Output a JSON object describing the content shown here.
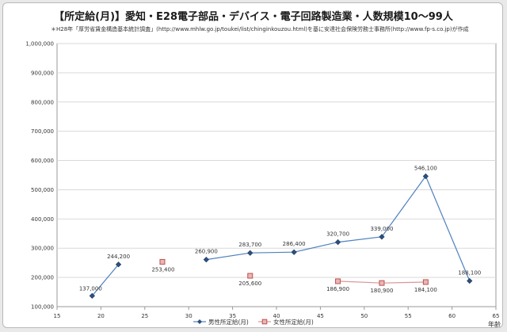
{
  "chart_data": {
    "type": "line",
    "title": "【所定給(月)】愛知・E28電子部品・デバイス・電子回路製造業・人数規模10～99人",
    "source_note": "＊H28年「厚労省賃金構造基本統計調査」(http://www.mhlw.go.jp/toukei/list/chinginkouzou.html)を基に安達社会保険労務士事務所(http://www.fp-s.co.jp)が作成",
    "xlabel": "年齢",
    "ylabel": "",
    "xlim": [
      15,
      65
    ],
    "ylim": [
      100000,
      1000000
    ],
    "x_ticks": [
      "15",
      "20",
      "25",
      "30",
      "35",
      "40",
      "45",
      "50",
      "55",
      "60",
      "65"
    ],
    "y_ticks": [
      "100,000",
      "200,000",
      "300,000",
      "400,000",
      "500,000",
      "600,000",
      "700,000",
      "800,000",
      "900,000",
      "1,000,000"
    ],
    "grid": "horizontal",
    "legend_position": "bottom",
    "series": [
      {
        "name": "男性所定給(月)",
        "color": "#2e4f7e",
        "marker": "diamond",
        "x": [
          19,
          22,
          32,
          37,
          42,
          47,
          52,
          57,
          62
        ],
        "values": [
          137000,
          244200,
          260900,
          283700,
          286400,
          320700,
          339000,
          546100,
          188100
        ],
        "labels": [
          "137,000",
          "244,200",
          "260,900",
          "283,700",
          "286,400",
          "320,700",
          "339,000",
          "546,100",
          "188,100"
        ],
        "segments": [
          [
            0,
            1
          ],
          [
            2,
            8
          ]
        ]
      },
      {
        "name": "女性所定給(月)",
        "color": "#c0504d",
        "marker": "square",
        "x": [
          27,
          37,
          47,
          52,
          57
        ],
        "values": [
          253400,
          205600,
          186900,
          180900,
          184100
        ],
        "labels": [
          "253,400",
          "205,600",
          "186,900",
          "180,900",
          "184,100"
        ],
        "segments": [
          [
            2,
            4
          ]
        ]
      }
    ]
  }
}
